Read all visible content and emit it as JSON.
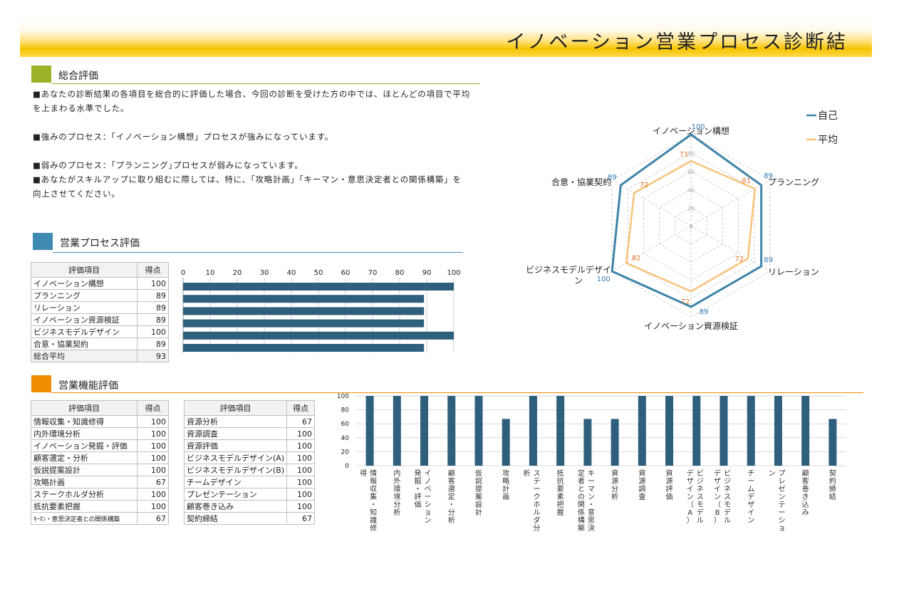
{
  "page_title": "イノベーション営業プロセス診断結",
  "overall": {
    "heading": "総合評価",
    "color": "#9bb327",
    "lines": [
      "■あなたの診断結果の各項目を総合的に評価した場合、今回の診断を受けた方の中では、ほとんどの項目で平均",
      "を上まわる水準でした。",
      "■強みのプロセス：「イノベーション構想」プロセスが強みになっています。",
      "■弱みのプロセス：｢プランニング｣プロセスが弱みになっています。",
      "■あなたがスキルアップに取り組むに際しては、特に、「攻略計画」「キーマン・意思決定者との関係構築」を",
      "向上させてください。"
    ]
  },
  "process": {
    "heading": "営業プロセス評価",
    "color": "#3e8ab1",
    "col_item": "評価項目",
    "col_score": "得点",
    "rows": [
      {
        "label": "イノベーション構想",
        "score": "100"
      },
      {
        "label": "プランニング",
        "score": "89"
      },
      {
        "label": "リレーション",
        "score": "89"
      },
      {
        "label": "イノベーション資源検証",
        "score": "89"
      },
      {
        "label": "ビジネスモデルデザイン",
        "score": "100"
      },
      {
        "label": "合意・協業契約",
        "score": "89"
      }
    ],
    "total_label": "総合平均",
    "total_score": "93"
  },
  "function": {
    "heading": "営業機能評価",
    "color": "#f08c00",
    "col_item": "評価項目",
    "col_score": "得点",
    "left_rows": [
      {
        "label": "情報収集・知識修得",
        "score": "100"
      },
      {
        "label": "内外環境分析",
        "score": "100"
      },
      {
        "label": "イノベーション発掘・評価",
        "score": "100"
      },
      {
        "label": "顧客選定・分析",
        "score": "100"
      },
      {
        "label": "仮説提案設計",
        "score": "100"
      },
      {
        "label": "攻略計画",
        "score": "67"
      },
      {
        "label": "ステークホルダ分析",
        "score": "100"
      },
      {
        "label": "抵抗要素把握",
        "score": "100"
      },
      {
        "label": "ｷｰﾏﾝ・意思決定者との関係構築",
        "score": "67"
      }
    ],
    "right_rows": [
      {
        "label": "資源分析",
        "score": "67"
      },
      {
        "label": "資源調査",
        "score": "100"
      },
      {
        "label": "資源評価",
        "score": "100"
      },
      {
        "label": "ビジネスモデルデザイン(A)",
        "score": "100"
      },
      {
        "label": "ビジネスモデルデザイン(B)",
        "score": "100"
      },
      {
        "label": "チームデザイン",
        "score": "100"
      },
      {
        "label": "プレゼンテーション",
        "score": "100"
      },
      {
        "label": "顧客巻き込み",
        "score": "100"
      },
      {
        "label": "契約締結",
        "score": "67"
      }
    ]
  },
  "chart_data": [
    {
      "type": "radar",
      "categories": [
        "イノベーション構想",
        "プランニング",
        "リレーション",
        "イノベーション資源検証",
        "ビジネスモデルデザイン",
        "合意・協業契約"
      ],
      "category_lines": [
        [
          "イノベーション構想"
        ],
        [
          "プランニング"
        ],
        [
          "リレーション"
        ],
        [
          "イノベーション資源検証"
        ],
        [
          "ビジネスモデルデザイ",
          "ン"
        ],
        [
          "合意・協業契約"
        ]
      ],
      "series": [
        {
          "name": "自己",
          "values": [
            100,
            89,
            89,
            89,
            100,
            89
          ],
          "color": "#3e84a8"
        },
        {
          "name": "平均",
          "values": [
            71,
            81,
            72,
            72,
            82,
            72
          ],
          "color": "#f8c27a"
        }
      ],
      "rmin": 0,
      "rmax": 100,
      "ticks": [
        0,
        20,
        40,
        60,
        80,
        100
      ],
      "legend": "top-right"
    },
    {
      "type": "bar",
      "orientation": "horizontal",
      "categories": [
        "イノベーション構想",
        "プランニング",
        "リレーション",
        "イノベーション資源検証",
        "ビジネスモデルデザイン",
        "合意・協業契約"
      ],
      "values": [
        100,
        89,
        89,
        89,
        100,
        89
      ],
      "xlim": [
        0,
        100
      ],
      "ticks": [
        0,
        10,
        20,
        30,
        40,
        50,
        60,
        70,
        80,
        90,
        100
      ],
      "color": "#2e5f7c"
    },
    {
      "type": "bar",
      "categories": [
        "情報収集・知識修得",
        "内外環境分析",
        "イノベーション発掘・評価",
        "顧客選定・分析",
        "仮説提案設計",
        "攻略計画",
        "ステークホルダ分析",
        "抵抗要素把握",
        "キーマン・意思決定者との関係構築",
        "資源分析",
        "資源調査",
        "資源評価",
        "ビジネスモデルデザイン（A）",
        "ビジネスモデルデザイン（B）",
        "チームデザイン",
        "プレゼンテーション",
        "顧客巻き込み",
        "契約締結"
      ],
      "category_cols": [
        [
          "情報収集・知識修",
          "得"
        ],
        [
          "内外環境分析"
        ],
        [
          "イノベーション",
          "発掘・評価"
        ],
        [
          "顧客選定・分析"
        ],
        [
          "仮説提案設計"
        ],
        [
          "攻略計画"
        ],
        [
          "ステークホルダ分",
          "析"
        ],
        [
          "抵抗要素把握"
        ],
        [
          "キーマン・意思決",
          "定者との関係構築"
        ],
        [
          "資源分析"
        ],
        [
          "資源調査"
        ],
        [
          "資源評価"
        ],
        [
          "ビジネスモデル",
          "デザイン（A）"
        ],
        [
          "ビジネスモデル",
          "デザイン（B）"
        ],
        [
          "チームデザイン"
        ],
        [
          "プレゼンテーショ",
          "ン"
        ],
        [
          "顧客巻き込み"
        ],
        [
          "契約締結"
        ]
      ],
      "values": [
        100,
        100,
        100,
        100,
        100,
        67,
        100,
        100,
        67,
        67,
        100,
        100,
        100,
        100,
        100,
        100,
        100,
        67
      ],
      "ylim": [
        0,
        100
      ],
      "ticks": [
        0,
        20,
        40,
        60,
        80,
        100
      ],
      "color": "#2e5f7c"
    }
  ]
}
